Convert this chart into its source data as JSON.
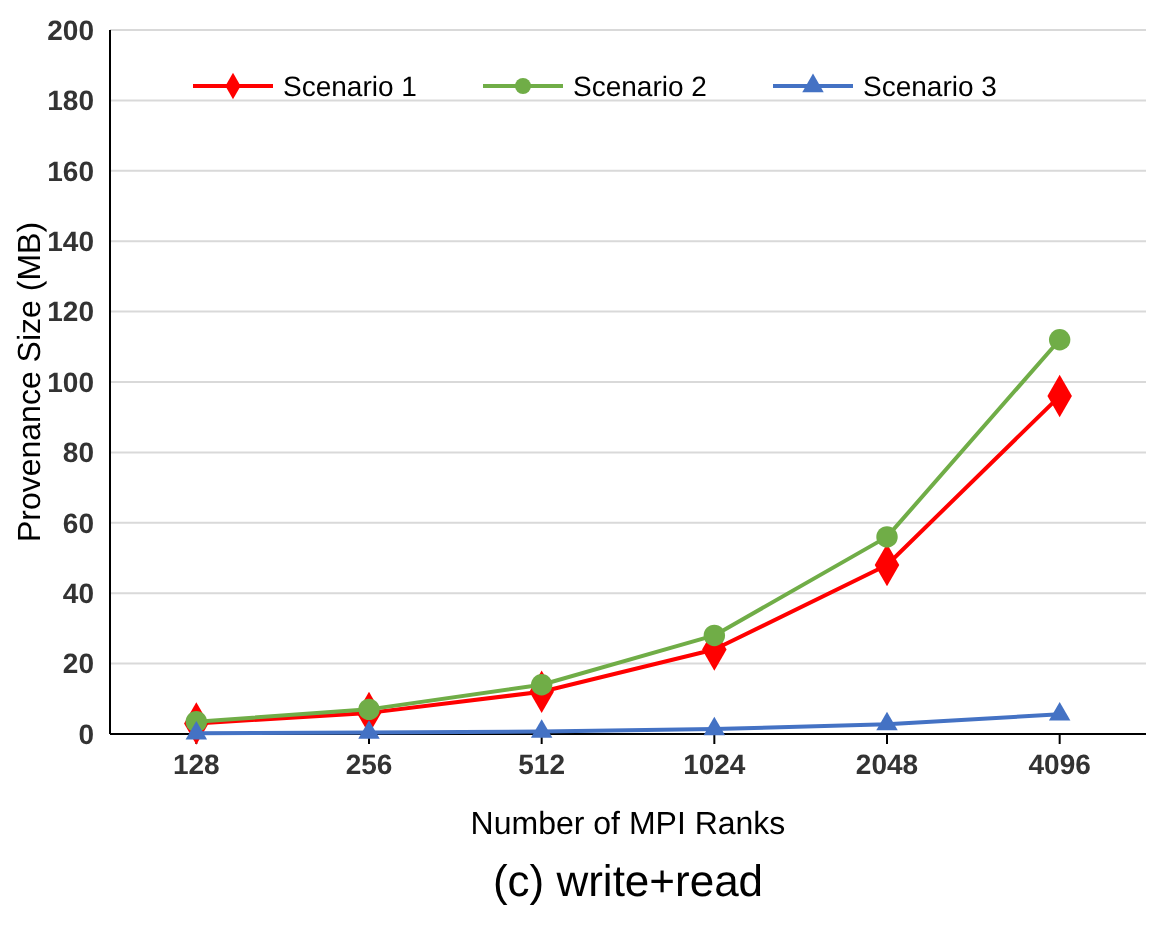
{
  "chart_data": {
    "type": "line",
    "title": "(c) write+read",
    "xlabel": "Number of MPI Ranks",
    "ylabel": "Provenance Size (MB)",
    "categories": [
      "128",
      "256",
      "512",
      "1024",
      "2048",
      "4096"
    ],
    "series": [
      {
        "name": "Scenario 1",
        "color": "#ff0000",
        "marker": "diamond",
        "values": [
          3,
          6,
          12,
          24,
          48,
          96
        ]
      },
      {
        "name": "Scenario 2",
        "color": "#70ad47",
        "marker": "circle",
        "values": [
          3.5,
          7,
          14,
          28,
          56,
          112
        ]
      },
      {
        "name": "Scenario 3",
        "color": "#4472c4",
        "marker": "triangle",
        "values": [
          0.2,
          0.4,
          0.7,
          1.4,
          2.8,
          5.6
        ]
      }
    ],
    "ylim": [
      0,
      200
    ],
    "yticks": [
      0,
      20,
      40,
      60,
      80,
      100,
      120,
      140,
      160,
      180,
      200
    ],
    "grid": "y",
    "legend": "top"
  }
}
